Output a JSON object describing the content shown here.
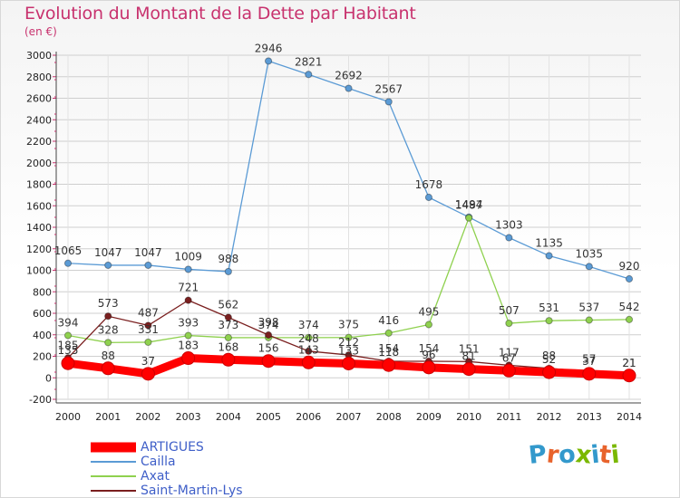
{
  "header": {
    "title": "Evolution du Montant de la Dette par Habitant",
    "subtitle": "(en €)"
  },
  "brand": {
    "text": "Proxiti",
    "letter_colors": [
      "#3399cc",
      "#e8632c",
      "#3399cc",
      "#7ab800",
      "#3399cc",
      "#e8632c",
      "#7ab800"
    ]
  },
  "chart_data": {
    "type": "line",
    "x": [
      2000,
      2001,
      2002,
      2003,
      2004,
      2005,
      2006,
      2007,
      2008,
      2009,
      2010,
      2011,
      2012,
      2013,
      2014
    ],
    "ylim": [
      -200,
      3000
    ],
    "yticks": [
      -200,
      0,
      200,
      400,
      600,
      800,
      1000,
      1200,
      1400,
      1600,
      1800,
      2000,
      2200,
      2400,
      2600,
      2800,
      3000
    ],
    "grid": true,
    "legend_position": "bottom-left",
    "series": [
      {
        "name": "ARTIGUES",
        "color": "#ff0000",
        "values": [
          135,
          88,
          37,
          183,
          168,
          156,
          143,
          133,
          118,
          96,
          81,
          67,
          52,
          37,
          21
        ],
        "labels": [
          "135",
          "88",
          "37",
          "183",
          "168",
          "156",
          "143",
          "133",
          "118",
          "96",
          "81",
          "67",
          "52",
          "37",
          "21"
        ]
      },
      {
        "name": "Cailla",
        "color": "#5b9bd5",
        "values": [
          1065,
          1047,
          1047,
          1009,
          988,
          2946,
          2821,
          2692,
          2567,
          1678,
          1494,
          1303,
          1135,
          1035,
          920
        ],
        "labels": [
          "1065",
          "1047",
          "1047",
          "1009",
          "988",
          "2946",
          "2821",
          "2692",
          "2567",
          "1678",
          "1494",
          "1303",
          "1135",
          "1035",
          "920"
        ]
      },
      {
        "name": "Axat",
        "color": "#8fd14f",
        "values": [
          394,
          328,
          331,
          393,
          373,
          374,
          374,
          375,
          416,
          495,
          1487,
          507,
          531,
          537,
          542
        ],
        "labels": [
          "394",
          "328",
          "331",
          "393",
          "373",
          "374",
          "374",
          "375",
          "416",
          "495",
          "1487",
          "507",
          "531",
          "537",
          "542"
        ]
      },
      {
        "name": "Saint-Martin-Lys",
        "color": "#7a1f1f",
        "values": [
          185,
          573,
          487,
          721,
          562,
          398,
          248,
          212,
          154,
          154,
          151,
          117,
          88,
          57,
          21
        ],
        "labels": [
          "185",
          "573",
          "487",
          "721",
          "562",
          "398",
          "248",
          "212",
          "154",
          "154",
          "151",
          "117",
          "88",
          "57",
          "21"
        ]
      }
    ]
  }
}
